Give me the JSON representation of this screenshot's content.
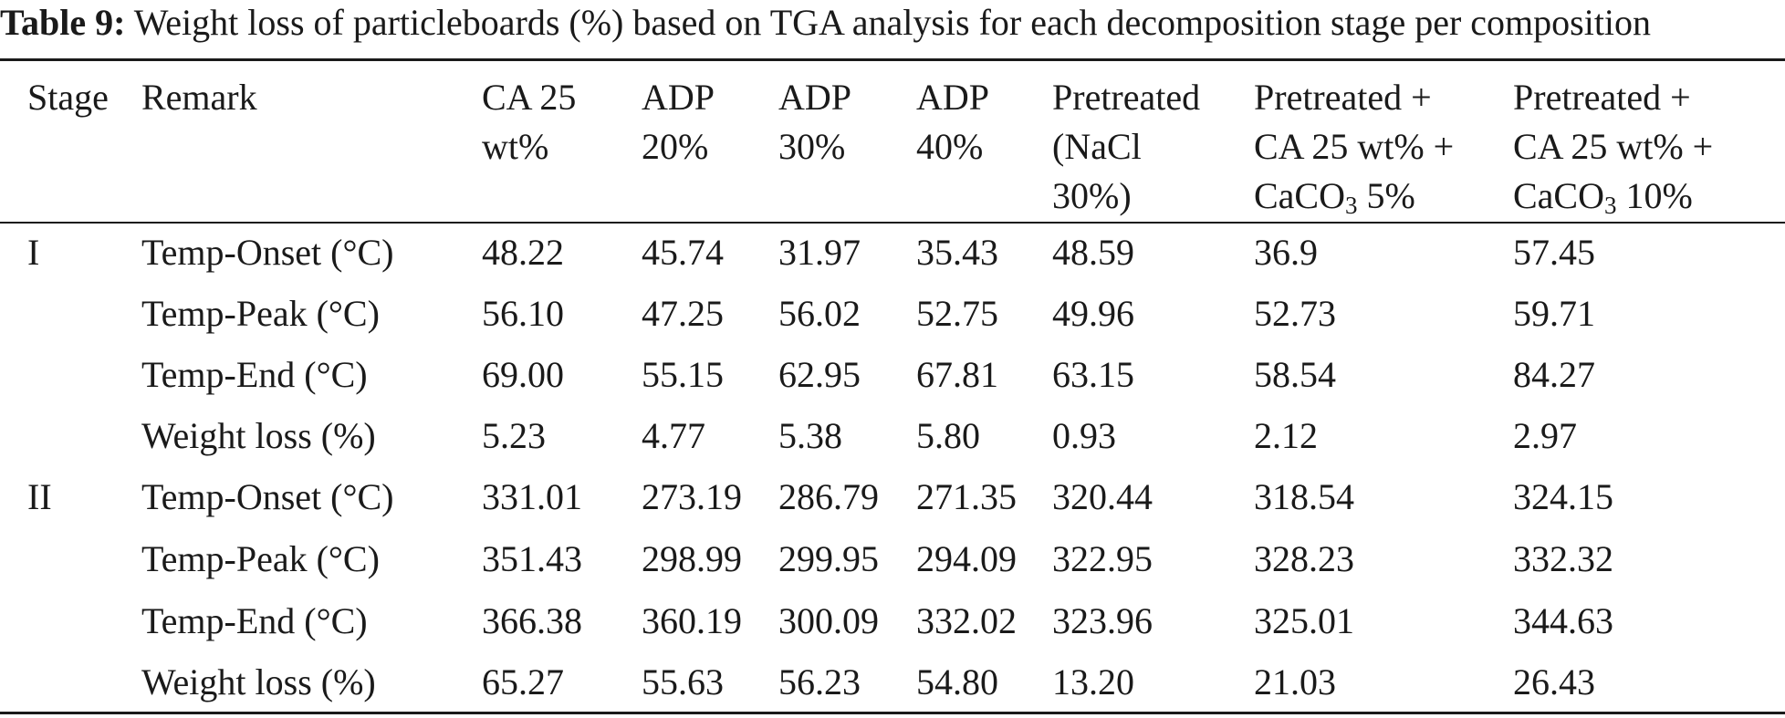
{
  "caption": {
    "label": "Table 9:",
    "text": "Weight loss of particleboards (%) based on TGA analysis for each decomposition stage per composition"
  },
  "headers": [
    {
      "lines": [
        "Stage"
      ]
    },
    {
      "lines": [
        "Remark"
      ]
    },
    {
      "lines": [
        "CA 25",
        "wt%"
      ]
    },
    {
      "lines": [
        "ADP",
        "20%"
      ]
    },
    {
      "lines": [
        "ADP",
        "30%"
      ]
    },
    {
      "lines": [
        "ADP",
        "40%"
      ]
    },
    {
      "lines": [
        "Pretreated",
        "(NaCl",
        "30%)"
      ]
    },
    {
      "lines": [
        "Pretreated +",
        "CA 25 wt% +"
      ],
      "caco3": {
        "prefix": "CaCO",
        "sub": "3",
        "suffix": " 5%"
      }
    },
    {
      "lines": [
        "Pretreated +",
        "CA 25 wt% +"
      ],
      "caco3": {
        "prefix": "CaCO",
        "sub": "3",
        "suffix": " 10%"
      }
    }
  ],
  "rows": [
    [
      "I",
      "Temp-Onset (°C)",
      "48.22",
      "45.74",
      "31.97",
      "35.43",
      "48.59",
      "36.9",
      "57.45"
    ],
    [
      "",
      "Temp-Peak (°C)",
      "56.10",
      "47.25",
      "56.02",
      "52.75",
      "49.96",
      "52.73",
      "59.71"
    ],
    [
      "",
      "Temp-End (°C)",
      "69.00",
      "55.15",
      "62.95",
      "67.81",
      "63.15",
      "58.54",
      "84.27"
    ],
    [
      "",
      "Weight loss (%)",
      "5.23",
      "4.77",
      "5.38",
      "5.80",
      "0.93",
      "2.12",
      "2.97"
    ],
    [
      "II",
      "Temp-Onset (°C)",
      "331.01",
      "273.19",
      "286.79",
      "271.35",
      "320.44",
      "318.54",
      "324.15"
    ],
    [
      "",
      "Temp-Peak (°C)",
      "351.43",
      "298.99",
      "299.95",
      "294.09",
      "322.95",
      "328.23",
      "332.32"
    ],
    [
      "",
      "Temp-End (°C)",
      "366.38",
      "360.19",
      "300.09",
      "332.02",
      "323.96",
      "325.01",
      "344.63"
    ],
    [
      "",
      "Weight loss (%)",
      "65.27",
      "55.63",
      "56.23",
      "54.80",
      "13.20",
      "21.03",
      "26.43"
    ]
  ]
}
